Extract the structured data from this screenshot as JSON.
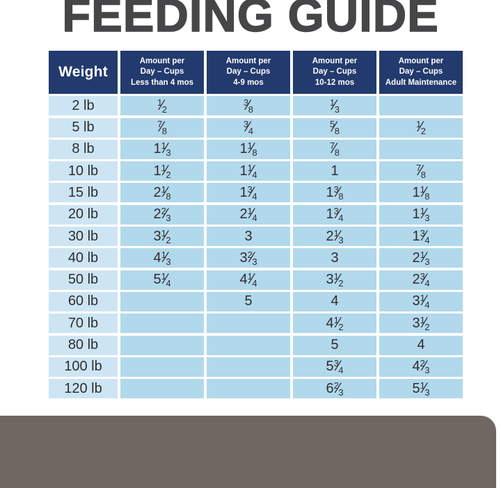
{
  "title": "FEEDING GUIDE",
  "colors": {
    "header_navy": "#223a6d",
    "weight_cell_blue": "#cde5f3",
    "amount_cell_blue": "#b2d8ec",
    "title_charcoal": "#464649",
    "package_band_gray": "#6f6762",
    "text_dark": "#2d2d31"
  },
  "table": {
    "headers": [
      "Weight",
      "Amount per\nDay – Cups\nLess than 4 mos",
      "Amount per\nDay – Cups\n4-9 mos",
      "Amount per\nDay – Cups\n10-12 mos",
      "Amount per\nDay – Cups\nAdult Maintenance"
    ],
    "rows": [
      {
        "weight": "2 lb",
        "values": [
          "1/2",
          "3/8",
          "1/3",
          ""
        ]
      },
      {
        "weight": "5 lb",
        "values": [
          "7/8",
          "3/4",
          "5/8",
          "1/2"
        ]
      },
      {
        "weight": "8 lb",
        "values": [
          "1 1/3",
          "1 1/8",
          "7/8",
          ""
        ]
      },
      {
        "weight": "10 lb",
        "values": [
          "1 1/2",
          "1 1/4",
          "1",
          "7/8"
        ]
      },
      {
        "weight": "15 lb",
        "values": [
          "2 1/8",
          "1 3/4",
          "1 3/8",
          "1 1/8"
        ]
      },
      {
        "weight": "20 lb",
        "values": [
          "2 2/3",
          "2 1/4",
          "1 3/4",
          "1 1/3"
        ]
      },
      {
        "weight": "30 lb",
        "values": [
          "3 1/2",
          "3",
          "2 1/3",
          "1 3/4"
        ]
      },
      {
        "weight": "40 lb",
        "values": [
          "4 1/3",
          "3 2/3",
          "3",
          "2 1/3"
        ]
      },
      {
        "weight": "50 lb",
        "values": [
          "5 1/4",
          "4 1/4",
          "3 1/2",
          "2 3/4"
        ]
      },
      {
        "weight": "60 lb",
        "values": [
          "",
          "5",
          "4",
          "3 1/4"
        ]
      },
      {
        "weight": "70 lb",
        "values": [
          "",
          "",
          "4 1/2",
          "3 1/2"
        ]
      },
      {
        "weight": "80 lb",
        "values": [
          "",
          "",
          "5",
          "4"
        ]
      },
      {
        "weight": "100 lb",
        "values": [
          "",
          "",
          "5 3/4",
          "4 2/3"
        ]
      },
      {
        "weight": "120 lb",
        "values": [
          "",
          "",
          "6 2/3",
          "5 1/3"
        ]
      }
    ]
  }
}
